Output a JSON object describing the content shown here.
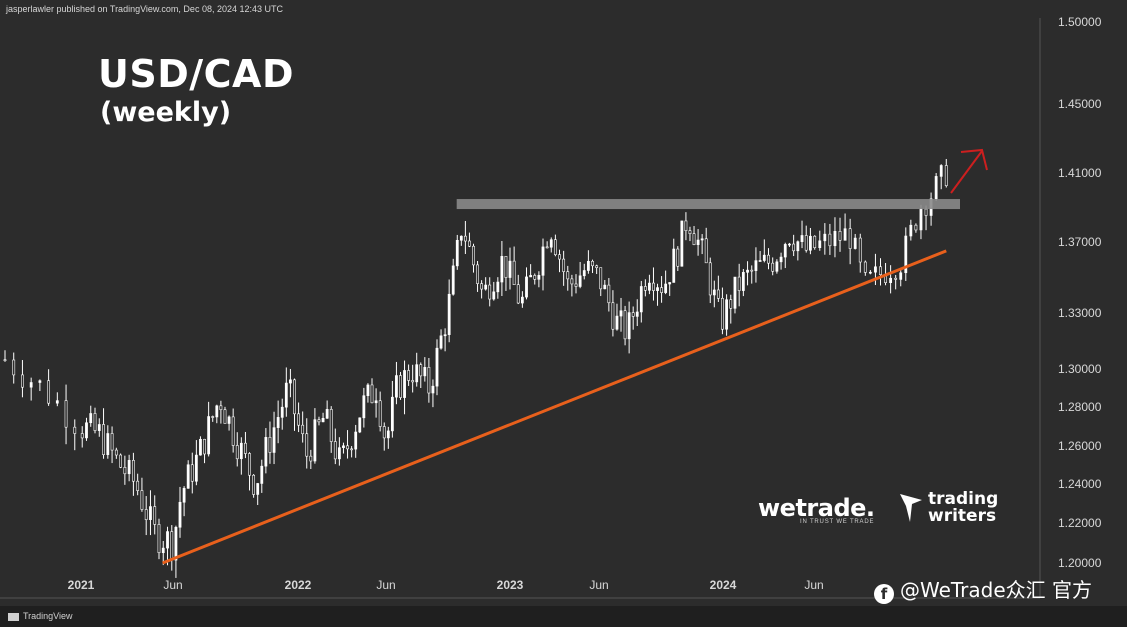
{
  "header": {
    "attribution": "jasperlawler published on TradingView.com, Dec 08, 2024 12:43 UTC"
  },
  "branding": {
    "wetrade": "wetrade.",
    "wetrade_tagline": "IN TRUST WE TRADE",
    "trading_writers_line1": "trading",
    "trading_writers_line2": "writers",
    "tradingview": "TradingView",
    "watermark": "@WeTrade众汇 官方"
  },
  "colors": {
    "background": "#2c2c2c",
    "candles": "#ffffff",
    "support_line": "#e8601c",
    "resistance_band": "#8a8a8a",
    "breakout_arrow": "#cc1f1f"
  },
  "chart_data": {
    "type": "candlestick",
    "title": "USD/CAD",
    "subtitle": "(weekly)",
    "y_ticks": [
      "1.50000",
      "1.45000",
      "1.41000",
      "1.37000",
      "1.33000",
      "1.30000",
      "1.28000",
      "1.26000",
      "1.24000",
      "1.22000",
      "1.20000"
    ],
    "x_ticks": [
      "2021",
      "Jun",
      "2022",
      "Jun",
      "2023",
      "Jun",
      "2024",
      "Jun"
    ],
    "x_range": [
      "2020-11",
      "2024-12"
    ],
    "y_range": [
      1.195,
      1.5
    ],
    "series_close_points": [
      [
        "2020-11-01",
        1.305
      ],
      [
        "2020-12-01",
        1.29
      ],
      [
        "2021-01-01",
        1.27
      ],
      [
        "2021-02-01",
        1.266
      ],
      [
        "2021-03-01",
        1.252
      ],
      [
        "2021-04-01",
        1.24
      ],
      [
        "2021-05-01",
        1.215
      ],
      [
        "2021-06-01",
        1.21
      ],
      [
        "2021-06-15",
        1.235
      ],
      [
        "2021-07-15",
        1.255
      ],
      [
        "2021-08-20",
        1.285
      ],
      [
        "2021-09-15",
        1.265
      ],
      [
        "2021-10-20",
        1.24
      ],
      [
        "2021-11-10",
        1.26
      ],
      [
        "2021-12-15",
        1.29
      ],
      [
        "2022-01-15",
        1.255
      ],
      [
        "2022-02-15",
        1.275
      ],
      [
        "2022-03-15",
        1.25
      ],
      [
        "2022-04-20",
        1.28
      ],
      [
        "2022-05-15",
        1.29
      ],
      [
        "2022-06-01",
        1.262
      ],
      [
        "2022-06-20",
        1.29
      ],
      [
        "2022-07-15",
        1.3
      ],
      [
        "2022-08-15",
        1.29
      ],
      [
        "2022-09-15",
        1.33
      ],
      [
        "2022-10-10",
        1.38
      ],
      [
        "2022-11-15",
        1.34
      ],
      [
        "2022-12-20",
        1.36
      ],
      [
        "2023-01-20",
        1.335
      ],
      [
        "2023-02-20",
        1.36
      ],
      [
        "2023-03-10",
        1.38
      ],
      [
        "2023-04-10",
        1.345
      ],
      [
        "2023-05-10",
        1.355
      ],
      [
        "2023-06-01",
        1.35
      ],
      [
        "2023-07-01",
        1.325
      ],
      [
        "2023-07-20",
        1.32
      ],
      [
        "2023-08-25",
        1.355
      ],
      [
        "2023-09-20",
        1.345
      ],
      [
        "2023-10-15",
        1.365
      ],
      [
        "2023-11-01",
        1.385
      ],
      [
        "2023-11-25",
        1.365
      ],
      [
        "2023-12-28",
        1.325
      ],
      [
        "2024-01-25",
        1.345
      ],
      [
        "2024-02-25",
        1.355
      ],
      [
        "2024-03-25",
        1.36
      ],
      [
        "2024-04-20",
        1.375
      ],
      [
        "2024-05-20",
        1.365
      ],
      [
        "2024-06-20",
        1.37
      ],
      [
        "2024-07-20",
        1.375
      ],
      [
        "2024-08-10",
        1.345
      ],
      [
        "2024-09-10",
        1.355
      ],
      [
        "2024-10-01",
        1.36
      ],
      [
        "2024-10-25",
        1.39
      ],
      [
        "2024-11-15",
        1.4
      ],
      [
        "2024-12-05",
        1.413
      ]
    ],
    "support_line": [
      [
        "2021-05-15",
        1.2
      ],
      [
        "2024-12-01",
        1.365
      ]
    ],
    "resistance_level": 1.392,
    "resistance_range": [
      "2022-10-01",
      "2024-12-20"
    ],
    "grid": false,
    "legend": "none"
  }
}
